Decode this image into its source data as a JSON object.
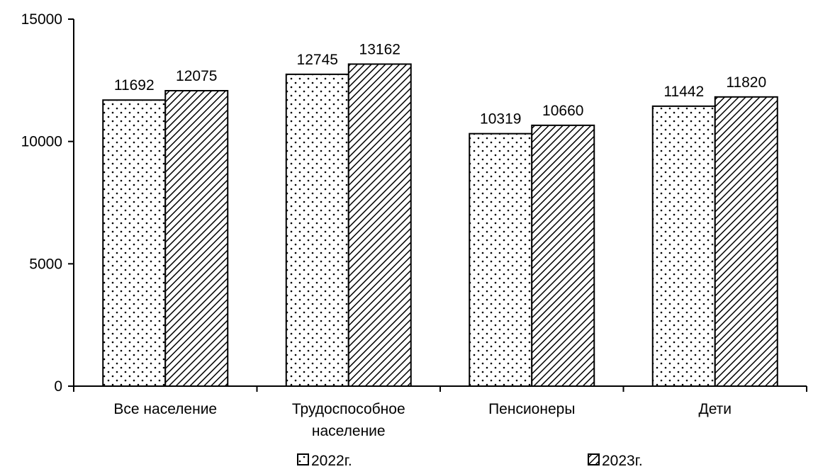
{
  "chart_data": {
    "type": "bar",
    "categories": [
      [
        "Все население"
      ],
      [
        "Трудоспособное",
        "население"
      ],
      [
        "Пенсионеры"
      ],
      [
        "Дети"
      ]
    ],
    "series": [
      {
        "name": "2022г.",
        "values": [
          11692,
          12745,
          10319,
          11442
        ],
        "pattern": "dots"
      },
      {
        "name": "2023г.",
        "values": [
          12075,
          13162,
          10660,
          11820
        ],
        "pattern": "diagonal-hatch"
      }
    ],
    "title": "",
    "xlabel": "",
    "ylabel": "",
    "ylim": [
      0,
      15000
    ],
    "yticks": [
      0,
      5000,
      10000,
      15000
    ],
    "grid": false,
    "legend_position": "bottom",
    "colors": {
      "bar_fill": "#ffffff",
      "pattern_ink": "#000000",
      "axis": "#000000"
    }
  }
}
